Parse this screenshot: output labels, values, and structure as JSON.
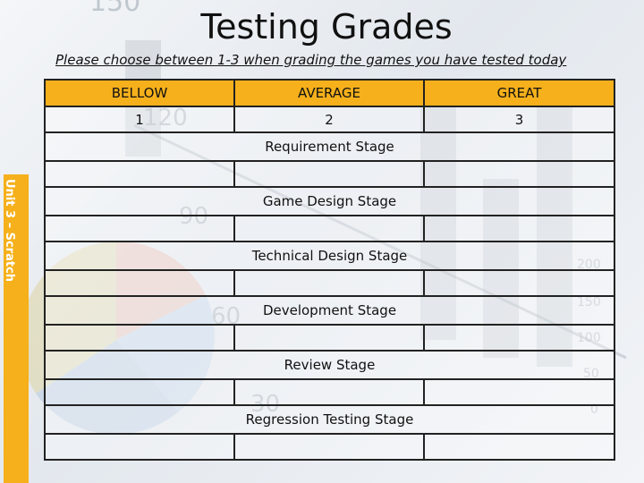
{
  "title": "Testing Grades",
  "subtitle": "Please choose between 1-3 when grading the games you have tested today",
  "side_label": "Unit 3 – Scratch",
  "grades": {
    "headers": [
      "BELLOW",
      "AVERAGE",
      "GREAT"
    ],
    "values": [
      "1",
      "2",
      "3"
    ]
  },
  "stages": [
    "Requirement Stage",
    "Game Design Stage",
    "Technical Design Stage",
    "Development Stage",
    "Review Stage",
    "Regression Testing Stage"
  ],
  "background_numbers": [
    "150",
    "120",
    "90",
    "60",
    "30",
    "200",
    "150",
    "100",
    "50",
    "0"
  ],
  "colors": {
    "accent": "#f5b01b",
    "border": "#222222",
    "background": "#eef1f4"
  }
}
